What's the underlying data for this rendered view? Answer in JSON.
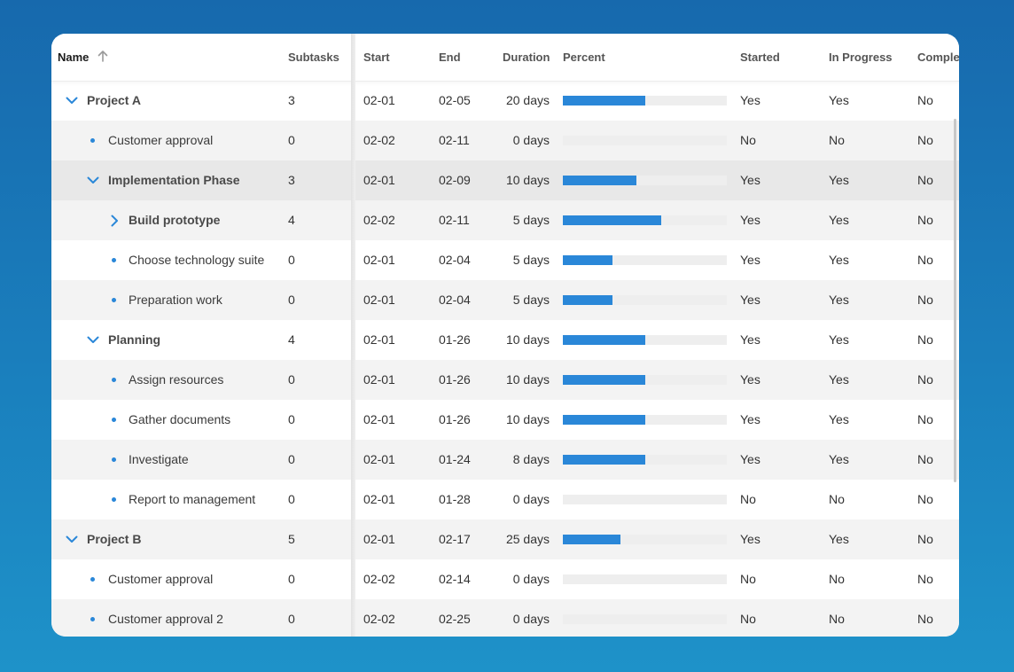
{
  "colors": {
    "accent": "#2a87d8",
    "track": "#eeeeee"
  },
  "header": {
    "name": "Name",
    "subtasks": "Subtasks",
    "start": "Start",
    "end": "End",
    "duration": "Duration",
    "percent": "Percent",
    "started": "Started",
    "in_progress": "In Progress",
    "completed": "Complete"
  },
  "rows": [
    {
      "name": "Project A",
      "subtasks": "3",
      "start": "02-01",
      "end": "02-05",
      "duration": "20 days",
      "percent": 0.5,
      "started": "Yes",
      "in_progress": "Yes",
      "completed": "No"
    },
    {
      "name": "Customer approval",
      "subtasks": "0",
      "start": "02-02",
      "end": "02-11",
      "duration": "0 days",
      "percent": 0,
      "started": "No",
      "in_progress": "No",
      "completed": "No"
    },
    {
      "name": "Implementation Phase",
      "subtasks": "3",
      "start": "02-01",
      "end": "02-09",
      "duration": "10 days",
      "percent": 0.45,
      "started": "Yes",
      "in_progress": "Yes",
      "completed": "No"
    },
    {
      "name": "Build prototype",
      "subtasks": "4",
      "start": "02-02",
      "end": "02-11",
      "duration": "5 days",
      "percent": 0.6,
      "started": "Yes",
      "in_progress": "Yes",
      "completed": "No"
    },
    {
      "name": "Choose technology suite",
      "subtasks": "0",
      "start": "02-01",
      "end": "02-04",
      "duration": "5 days",
      "percent": 0.3,
      "started": "Yes",
      "in_progress": "Yes",
      "completed": "No"
    },
    {
      "name": "Preparation work",
      "subtasks": "0",
      "start": "02-01",
      "end": "02-04",
      "duration": "5 days",
      "percent": 0.3,
      "started": "Yes",
      "in_progress": "Yes",
      "completed": "No"
    },
    {
      "name": "Planning",
      "subtasks": "4",
      "start": "02-01",
      "end": "01-26",
      "duration": "10 days",
      "percent": 0.5,
      "started": "Yes",
      "in_progress": "Yes",
      "completed": "No"
    },
    {
      "name": "Assign resources",
      "subtasks": "0",
      "start": "02-01",
      "end": "01-26",
      "duration": "10 days",
      "percent": 0.5,
      "started": "Yes",
      "in_progress": "Yes",
      "completed": "No"
    },
    {
      "name": "Gather documents",
      "subtasks": "0",
      "start": "02-01",
      "end": "01-26",
      "duration": "10 days",
      "percent": 0.5,
      "started": "Yes",
      "in_progress": "Yes",
      "completed": "No"
    },
    {
      "name": "Investigate",
      "subtasks": "0",
      "start": "02-01",
      "end": "01-24",
      "duration": "8 days",
      "percent": 0.5,
      "started": "Yes",
      "in_progress": "Yes",
      "completed": "No"
    },
    {
      "name": "Report to management",
      "subtasks": "0",
      "start": "02-01",
      "end": "01-28",
      "duration": "0 days",
      "percent": 0,
      "started": "No",
      "in_progress": "No",
      "completed": "No"
    },
    {
      "name": "Project B",
      "subtasks": "5",
      "start": "02-01",
      "end": "02-17",
      "duration": "25 days",
      "percent": 0.35,
      "started": "Yes",
      "in_progress": "Yes",
      "completed": "No"
    },
    {
      "name": "Customer approval",
      "subtasks": "0",
      "start": "02-02",
      "end": "02-14",
      "duration": "0 days",
      "percent": 0,
      "started": "No",
      "in_progress": "No",
      "completed": "No"
    },
    {
      "name": "Customer approval 2",
      "subtasks": "0",
      "start": "02-02",
      "end": "02-25",
      "duration": "0 days",
      "percent": 0,
      "started": "No",
      "in_progress": "No",
      "completed": "No"
    }
  ]
}
